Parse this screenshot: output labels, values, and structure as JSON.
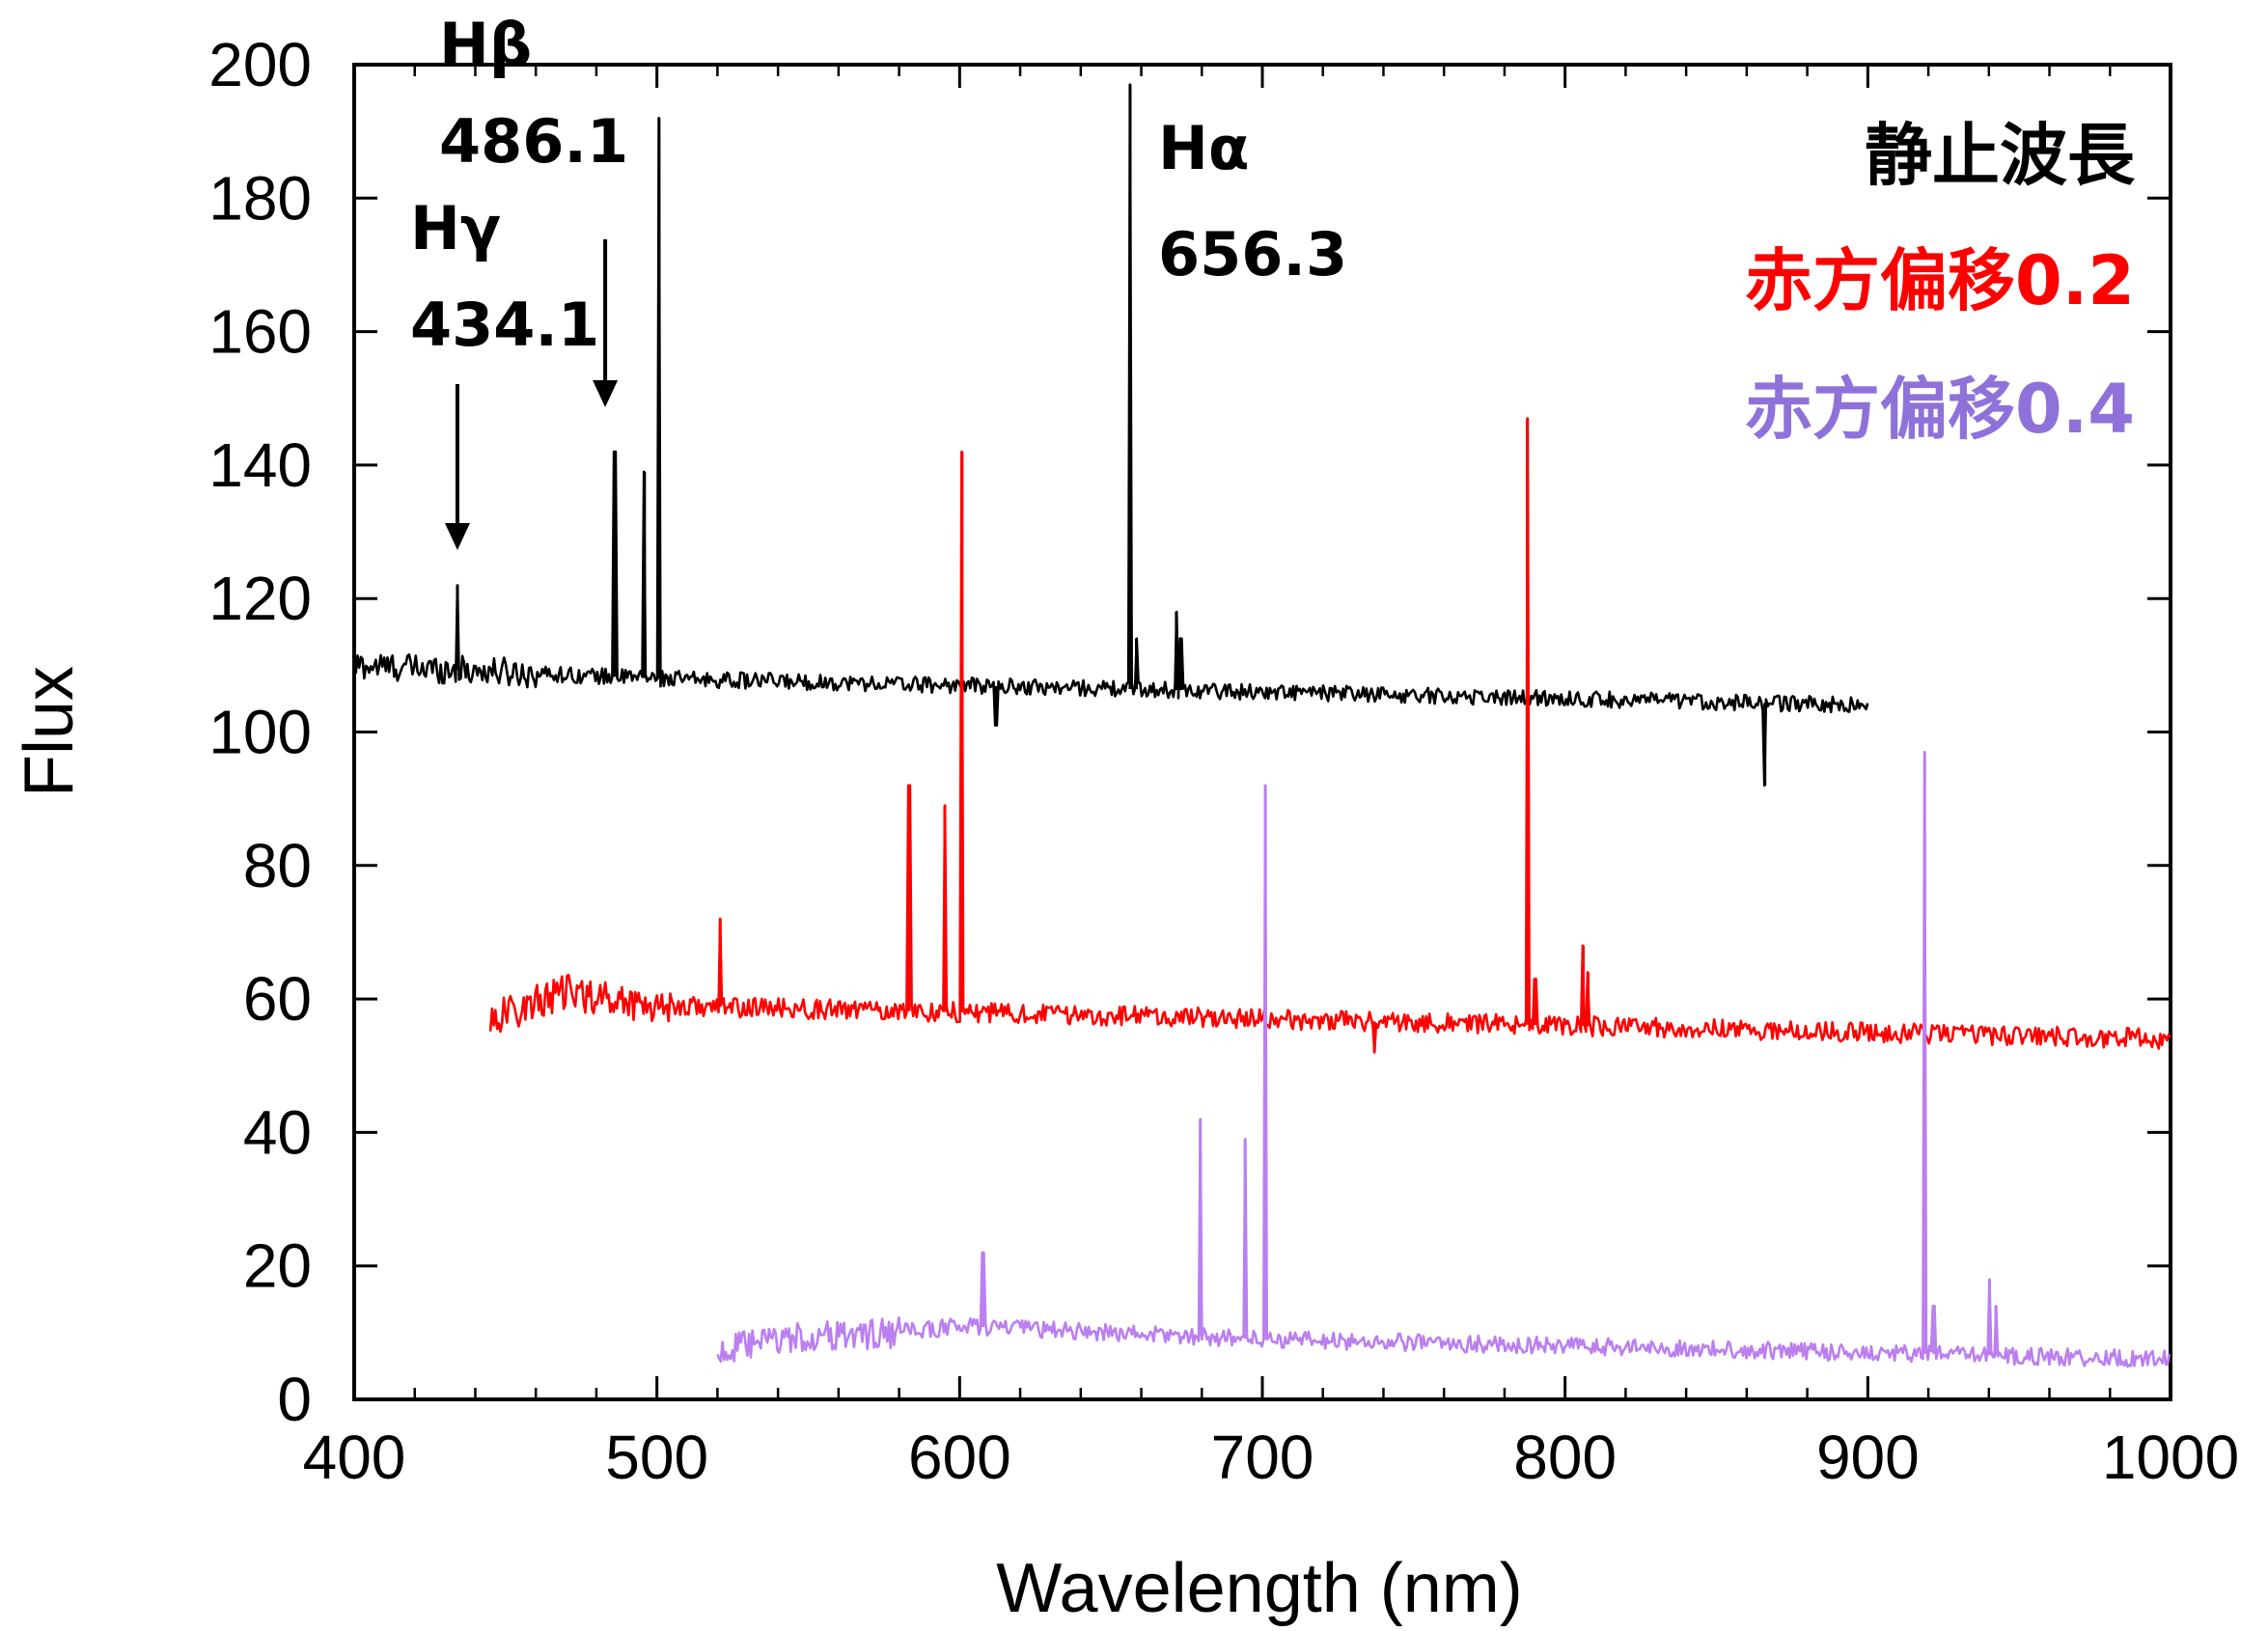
{
  "chart_data": {
    "type": "line",
    "xlabel": "Wavelength (nm)",
    "ylabel": "Flux",
    "xlim": [
      400,
      1000
    ],
    "ylim": [
      0,
      200
    ],
    "x_ticks": [
      "400",
      "500",
      "600",
      "700",
      "800",
      "900",
      "1000"
    ],
    "y_ticks": [
      "0",
      "20",
      "40",
      "60",
      "80",
      "100",
      "120",
      "140",
      "160",
      "180",
      "200"
    ],
    "grid": false,
    "legend_position": "top-right",
    "annotations": [
      {
        "line1": "Hβ",
        "line2": "486.1"
      },
      {
        "line1": "Hγ",
        "line2": "434.1"
      },
      {
        "line1": "Hα",
        "line2": "656.3"
      }
    ],
    "series": [
      {
        "name": "静止波長",
        "color": "#000000",
        "x_range": [
          400,
          900
        ],
        "continuum": [
          [
            400,
            110
          ],
          [
            500,
            108
          ],
          [
            600,
            107
          ],
          [
            700,
            106
          ],
          [
            800,
            105
          ],
          [
            900,
            104
          ]
        ],
        "noise_amplitude": 1.2,
        "emission_lines": [
          [
            434.1,
            122
          ],
          [
            486.1,
            142
          ],
          [
            495.9,
            139
          ],
          [
            500.7,
            192
          ],
          [
            656.3,
            197
          ],
          [
            658.4,
            114
          ],
          [
            671.6,
            118
          ],
          [
            673.1,
            114
          ]
        ],
        "absorption_dips": [
          [
            612,
            101
          ],
          [
            866,
            92
          ]
        ]
      },
      {
        "name": "赤方偏移0.2",
        "color": "#ff0000",
        "x_range": [
          445,
          1000
        ],
        "continuum": [
          [
            445,
            57
          ],
          [
            470,
            61
          ],
          [
            500,
            59
          ],
          [
            600,
            58
          ],
          [
            700,
            57
          ],
          [
            800,
            56
          ],
          [
            900,
            55
          ],
          [
            1000,
            54
          ]
        ],
        "noise_amplitude": 1.5,
        "emission_lines": [
          [
            520.9,
            72
          ],
          [
            583.3,
            92
          ],
          [
            595.1,
            89
          ],
          [
            600.8,
            142
          ],
          [
            787.5,
            147
          ],
          [
            790.1,
            63
          ],
          [
            806.0,
            68
          ],
          [
            807.6,
            64
          ]
        ],
        "absorption_dips": [
          [
            737,
            52
          ]
        ]
      },
      {
        "name": "赤方偏移0.4",
        "color": "#bb7ff0",
        "x_range": [
          520,
          1000
        ],
        "continuum": [
          [
            520,
            7
          ],
          [
            540,
            9
          ],
          [
            580,
            10
          ],
          [
            600,
            11
          ],
          [
            650,
            10
          ],
          [
            700,
            9
          ],
          [
            800,
            8
          ],
          [
            900,
            7
          ],
          [
            1000,
            6
          ]
        ],
        "noise_amplitude": 1.3,
        "emission_lines": [
          [
            607.7,
            22
          ],
          [
            679.5,
            42
          ],
          [
            694.3,
            39
          ],
          [
            701.0,
            92
          ],
          [
            918.8,
            97
          ],
          [
            921.8,
            14
          ],
          [
            940.2,
            18
          ],
          [
            942.3,
            14
          ]
        ],
        "absorption_dips": []
      }
    ]
  }
}
